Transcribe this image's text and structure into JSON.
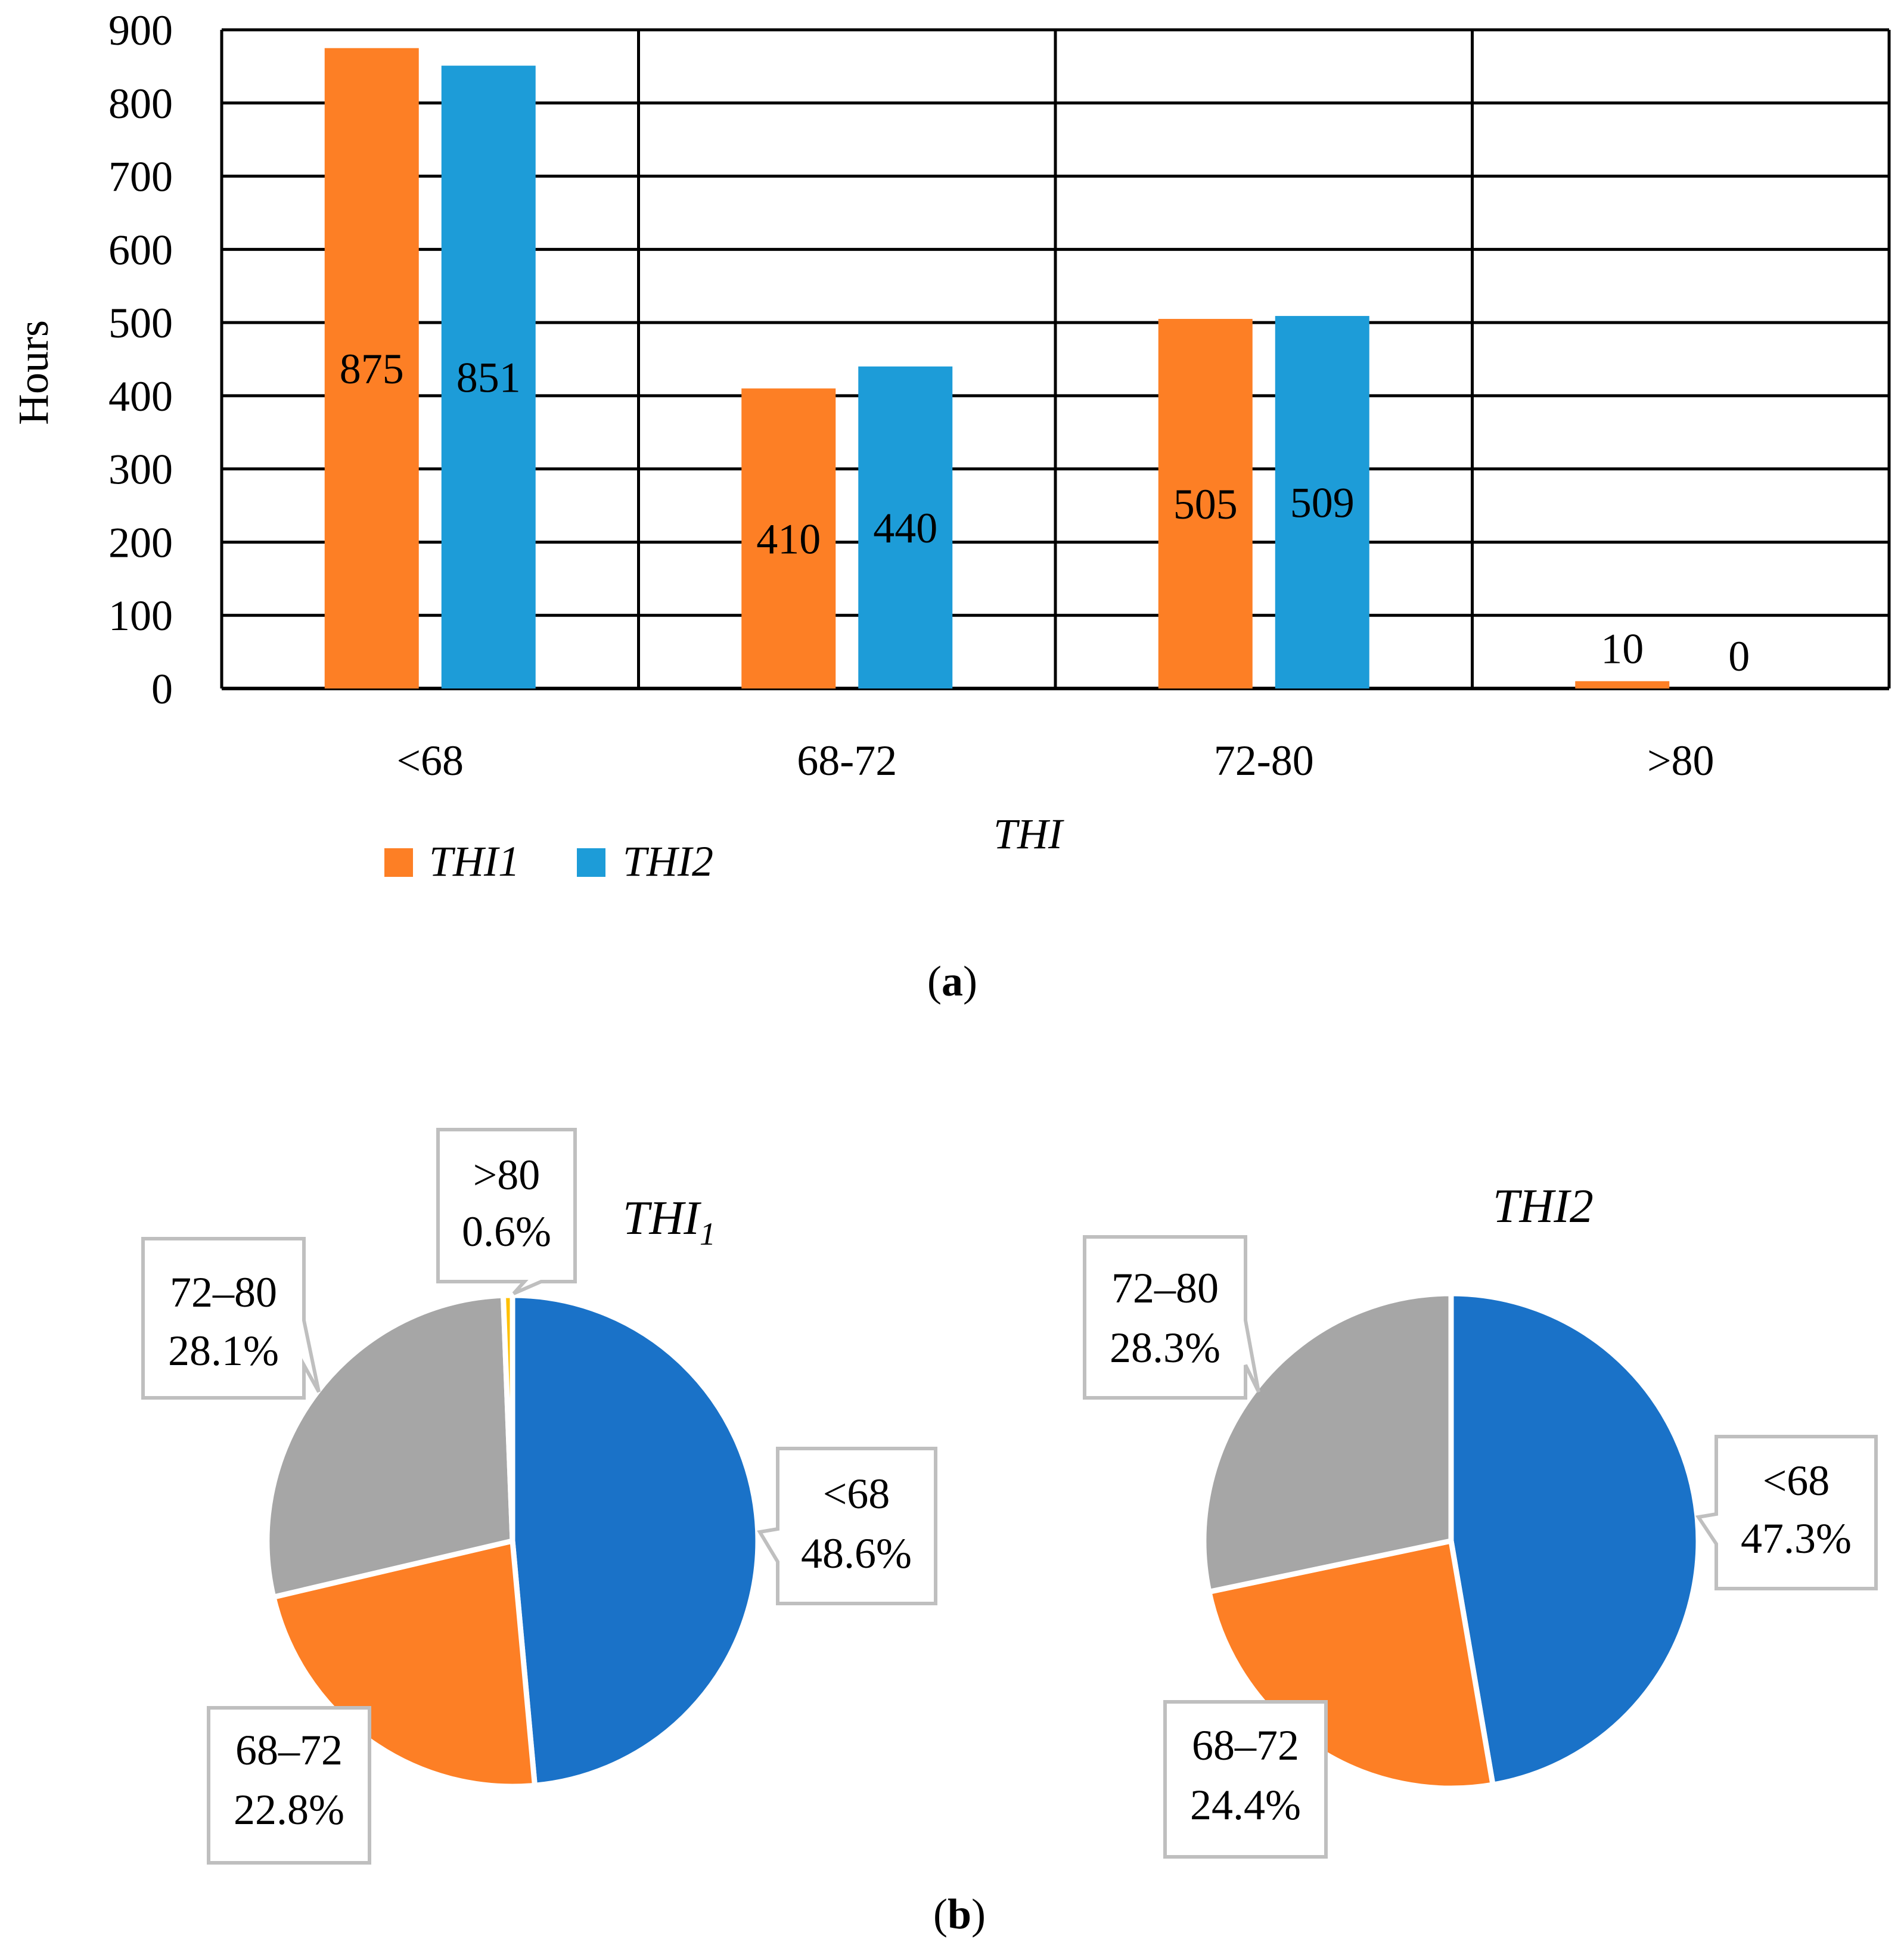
{
  "colors": {
    "thi1": "#FD7F25",
    "thi2": "#1D9CD8",
    "pie_lt68": "#1A72C8",
    "pie_68_72": "#FD7F25",
    "pie_72_80": "#A6A6A6",
    "pie_gt80": "#FFC000",
    "label_box": "#BFBFBF"
  },
  "panel_a": {
    "label_open": "(",
    "label_letter": "a",
    "label_close": ")"
  },
  "panel_b": {
    "label_open": "(",
    "label_letter": "b",
    "label_close": ")"
  },
  "chart_data": [
    {
      "type": "bar",
      "categories": [
        "<68",
        "68-72",
        "72-80",
        ">80"
      ],
      "series": [
        {
          "name": "THI1",
          "values": [
            875,
            410,
            505,
            10
          ],
          "labels": [
            "875",
            "410",
            "505",
            "10"
          ]
        },
        {
          "name": "THI2",
          "values": [
            851,
            440,
            509,
            0
          ],
          "labels": [
            "851",
            "440",
            "509",
            "0"
          ]
        }
      ],
      "xlabel": "THI",
      "ylabel": "Hours",
      "ylim": [
        0,
        900
      ],
      "yticks": [
        "0",
        "100",
        "200",
        "300",
        "400",
        "500",
        "600",
        "700",
        "800",
        "900"
      ],
      "grid": true,
      "legend": "bottom-left"
    },
    {
      "type": "pie",
      "title": "THI1",
      "title_main": "THI",
      "title_sub": "1",
      "slices": [
        {
          "category": "<68",
          "value": 48.6,
          "label": "48.6%"
        },
        {
          "category": "68–72",
          "value": 22.8,
          "label": "22.8%"
        },
        {
          "category": "72–80",
          "value": 28.1,
          "label": "28.1%"
        },
        {
          "category": ">80",
          "value": 0.6,
          "label": "0.6%"
        }
      ]
    },
    {
      "type": "pie",
      "title": "THI2",
      "slices": [
        {
          "category": "<68",
          "value": 47.3,
          "label": "47.3%"
        },
        {
          "category": "68–72",
          "value": 24.4,
          "label": "24.4%"
        },
        {
          "category": "72–80",
          "value": 28.3,
          "label": "28.3%"
        }
      ]
    }
  ]
}
